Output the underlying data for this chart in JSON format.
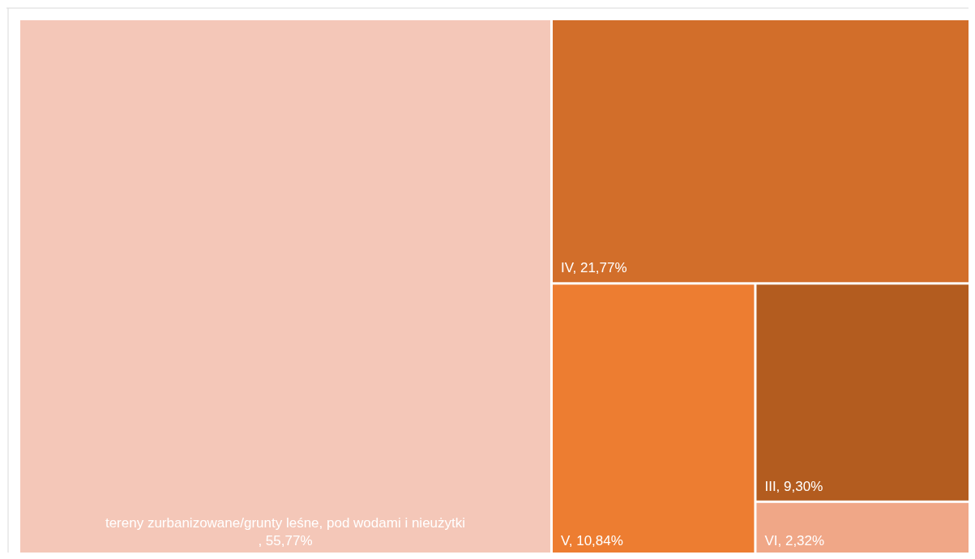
{
  "chart_data": {
    "type": "other",
    "categories": [
      "tereny zurbanizowane/grunty leśne, pod wodami i nieużytki",
      "IV",
      "V",
      "III",
      "VI"
    ],
    "values": [
      55.77,
      21.77,
      10.84,
      9.3,
      2.32
    ],
    "value_labels": [
      ", 55,77%",
      ", 21,77%",
      ", 10,84%",
      ", 9,30%",
      ", 2,32%"
    ],
    "colors": [
      "#f4c7b8",
      "#d26e2a",
      "#ed7d31",
      "#b35c1f",
      "#f0a787"
    ]
  }
}
